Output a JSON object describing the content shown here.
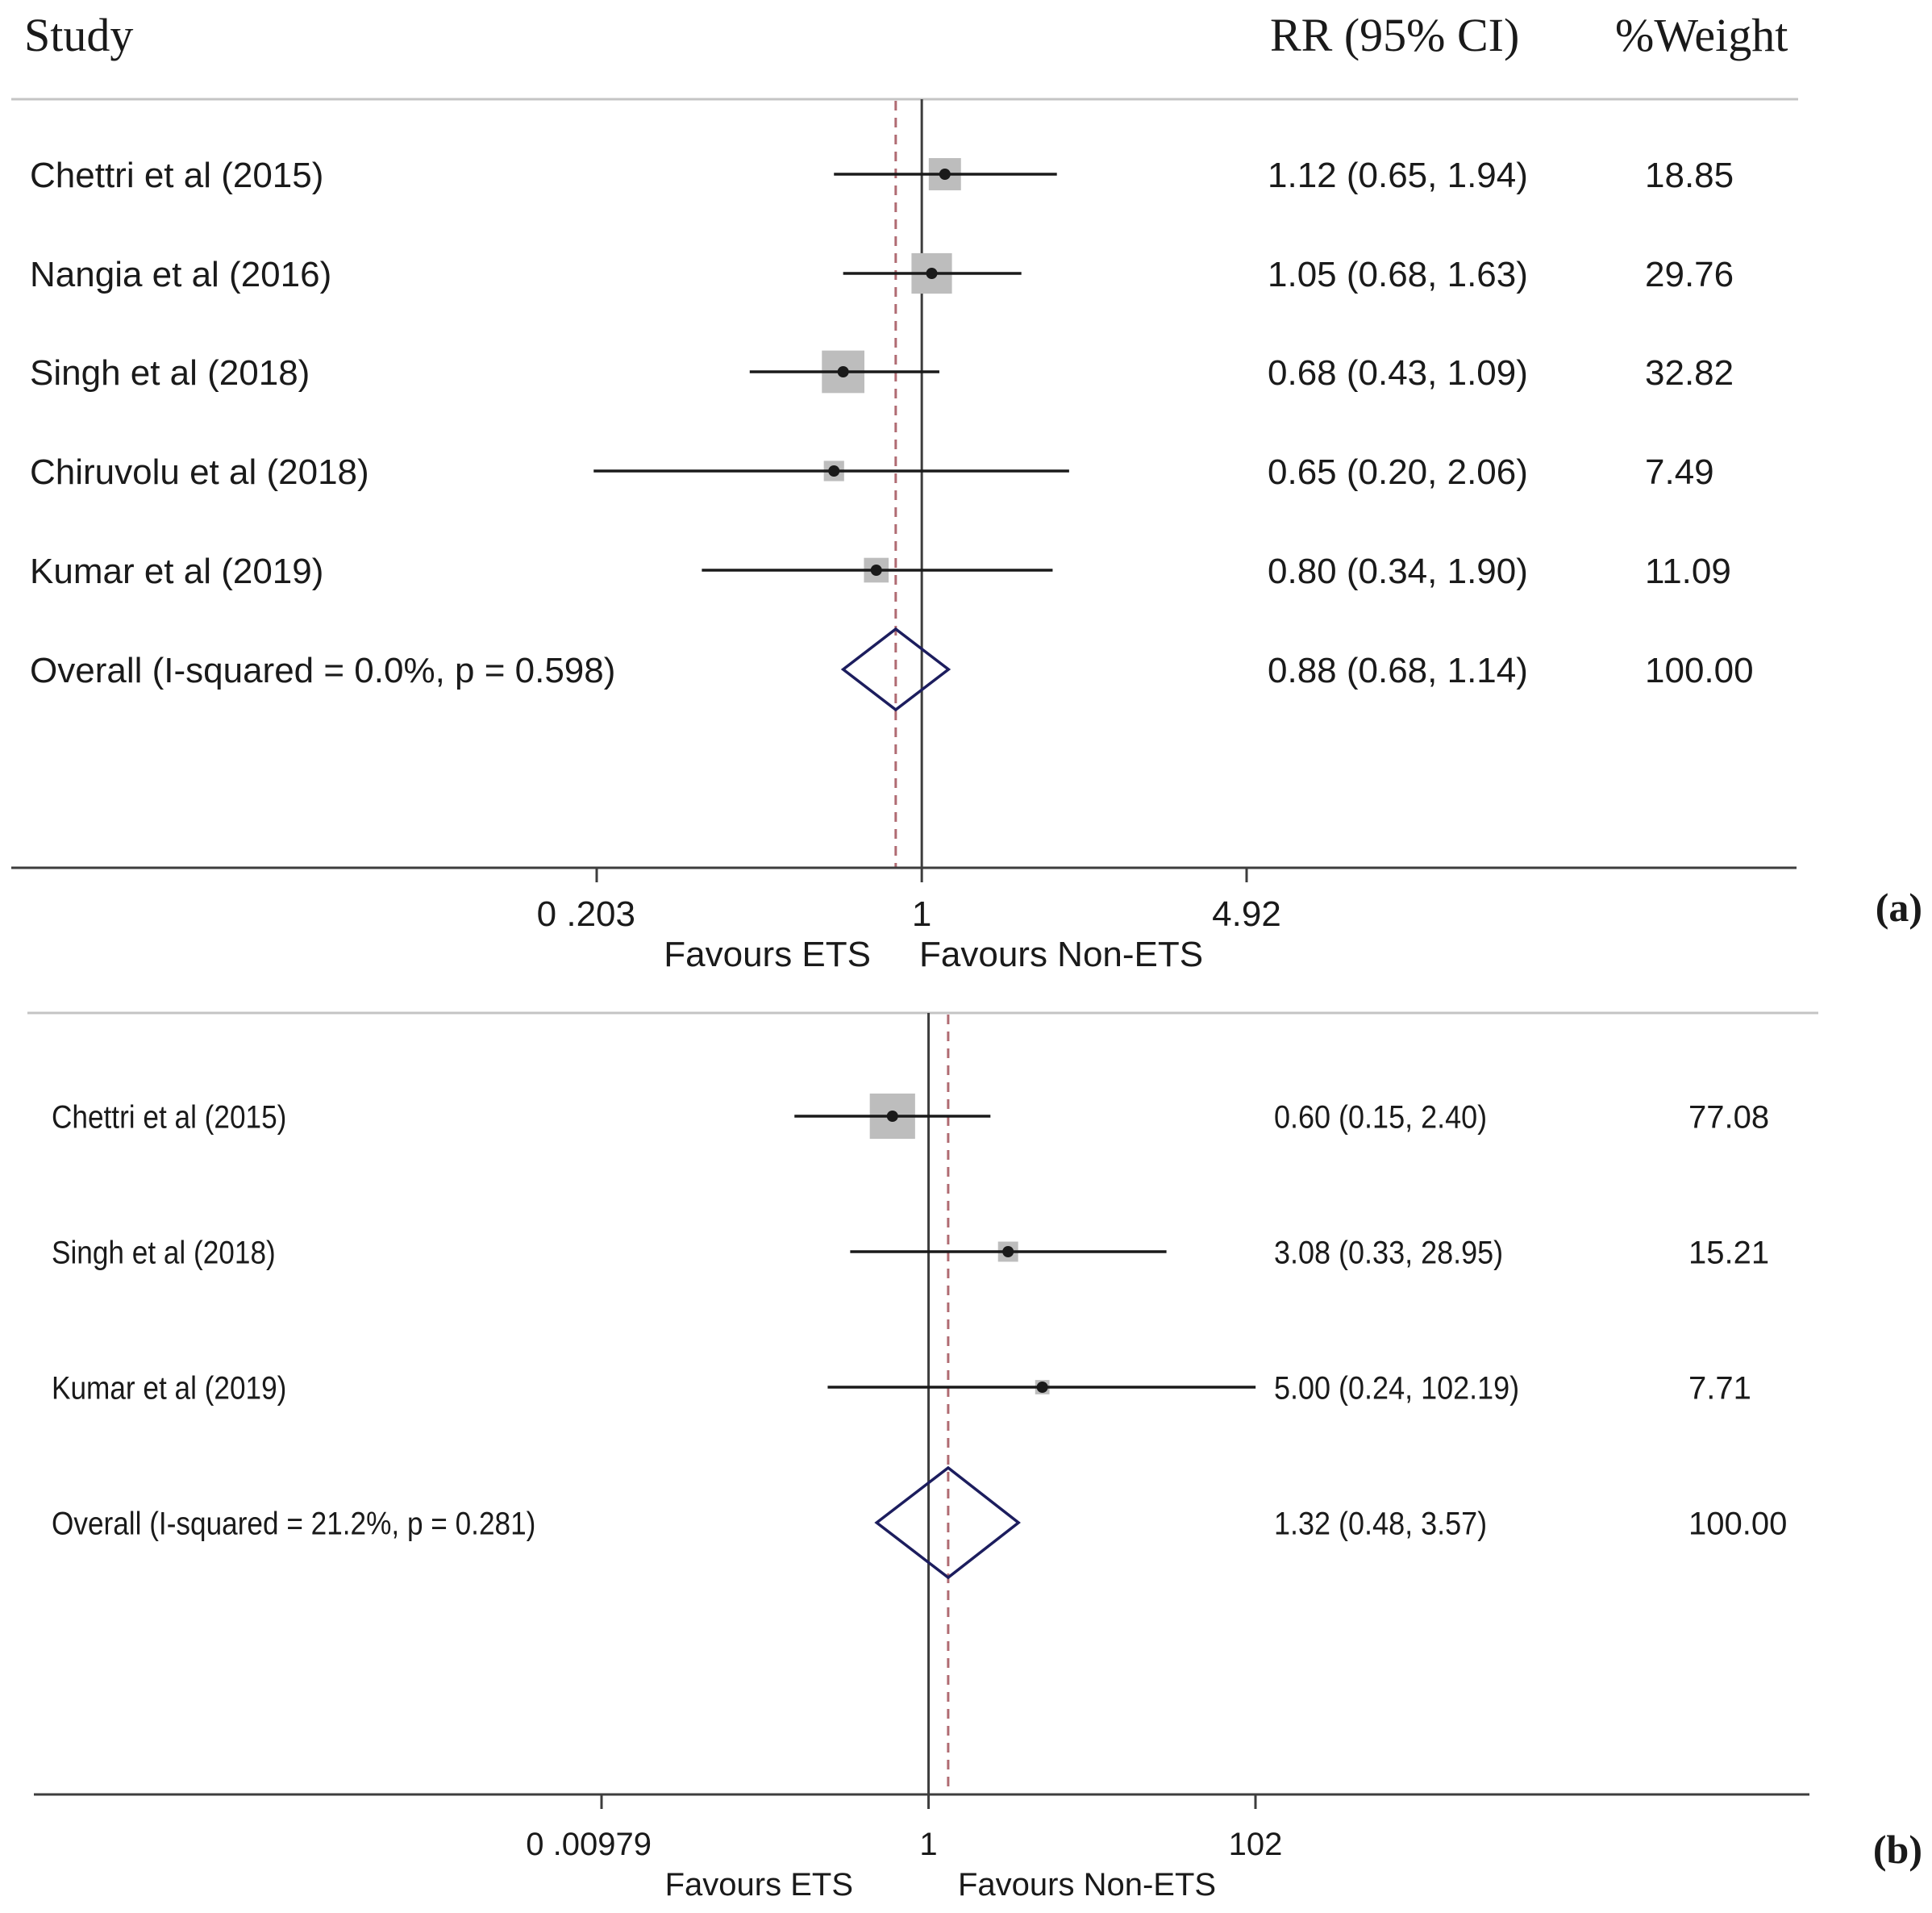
{
  "header": {
    "study_label": "Study",
    "rr_label": "RR (95% CI)",
    "weight_label": "%Weight"
  },
  "colors": {
    "line": "#1a1a1a",
    "axis": "#3d3d3d",
    "box": "#bdbdbd",
    "diamond": "#1c1d5e",
    "dashed": "#b06b72",
    "rule": "#c4c4c4"
  },
  "chart_data": [
    {
      "type": "forest",
      "panel_label": "(a)",
      "scale": "log",
      "axis_ticks": [
        {
          "value": 0.203,
          "label": "0 .203"
        },
        {
          "value": 1,
          "label": "1"
        },
        {
          "value": 4.92,
          "label": "4.92"
        }
      ],
      "favours_left": "Favours ETS",
      "favours_right": "Favours Non-ETS",
      "null_line": 1,
      "studies": [
        {
          "name": "Chettri et al (2015)",
          "rr": 1.12,
          "lo": 0.65,
          "hi": 1.94,
          "ci_text": "1.12 (0.65, 1.94)",
          "weight": 18.85,
          "weight_text": "18.85"
        },
        {
          "name": "Nangia et al (2016)",
          "rr": 1.05,
          "lo": 0.68,
          "hi": 1.63,
          "ci_text": "1.05 (0.68, 1.63)",
          "weight": 29.76,
          "weight_text": "29.76"
        },
        {
          "name": "Singh et al (2018)",
          "rr": 0.68,
          "lo": 0.43,
          "hi": 1.09,
          "ci_text": "0.68 (0.43, 1.09)",
          "weight": 32.82,
          "weight_text": "32.82"
        },
        {
          "name": "Chiruvolu et al (2018)",
          "rr": 0.65,
          "lo": 0.2,
          "hi": 2.06,
          "ci_text": "0.65 (0.20, 2.06)",
          "weight": 7.49,
          "weight_text": "7.49"
        },
        {
          "name": "Kumar et al (2019)",
          "rr": 0.8,
          "lo": 0.34,
          "hi": 1.9,
          "ci_text": "0.80 (0.34, 1.90)",
          "weight": 11.09,
          "weight_text": "11.09"
        }
      ],
      "overall": {
        "name": "Overall  (I-squared = 0.0%, p = 0.598)",
        "rr": 0.88,
        "lo": 0.68,
        "hi": 1.14,
        "ci_text": "0.88 (0.68, 1.14)",
        "weight_text": "100.00"
      }
    },
    {
      "type": "forest",
      "panel_label": "(b)",
      "scale": "log",
      "axis_ticks": [
        {
          "value": 0.00979,
          "label": "0 .00979"
        },
        {
          "value": 1,
          "label": "1"
        },
        {
          "value": 102,
          "label": "102"
        }
      ],
      "favours_left": "Favours ETS",
      "favours_right": "Favours Non-ETS",
      "null_line": 1,
      "studies": [
        {
          "name": "Chettri et al (2015)",
          "rr": 0.6,
          "lo": 0.15,
          "hi": 2.4,
          "ci_text": "0.60 (0.15, 2.40)",
          "weight": 77.08,
          "weight_text": "77.08"
        },
        {
          "name": "Singh et al (2018)",
          "rr": 3.08,
          "lo": 0.33,
          "hi": 28.95,
          "ci_text": "3.08 (0.33, 28.95)",
          "weight": 15.21,
          "weight_text": "15.21"
        },
        {
          "name": "Kumar et al (2019)",
          "rr": 5.0,
          "lo": 0.24,
          "hi": 102.19,
          "ci_text": "5.00 (0.24, 102.19)",
          "weight": 7.71,
          "weight_text": "7.71"
        }
      ],
      "overall": {
        "name": "Overall  (I-squared = 21.2%, p = 0.281)",
        "rr": 1.32,
        "lo": 0.48,
        "hi": 3.57,
        "ci_text": "1.32 (0.48, 3.57)",
        "weight_text": "100.00"
      }
    }
  ]
}
